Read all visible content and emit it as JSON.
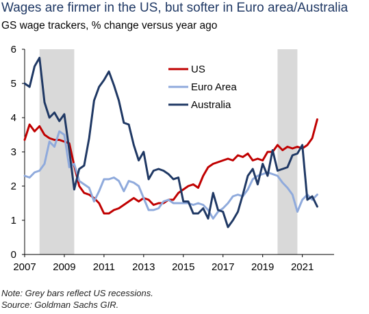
{
  "chart_data": {
    "type": "line",
    "title": "Wages are firmer in the US, but softer in Euro area/Australia",
    "subtitle": "GS wage trackers, % change versus year ago",
    "xlabel": "",
    "ylabel": "",
    "xlim": [
      2007,
      2022.6
    ],
    "ylim": [
      0,
      6
    ],
    "x_ticks": [
      2007,
      2009,
      2011,
      2013,
      2015,
      2017,
      2019,
      2021
    ],
    "y_ticks": [
      0,
      1,
      2,
      3,
      4,
      5,
      6
    ],
    "grid": false,
    "legend_position": "top-center",
    "shaded_periods": [
      {
        "start": 2007.75,
        "end": 2009.5
      },
      {
        "start": 2019.75,
        "end": 2020.75
      }
    ],
    "series": [
      {
        "name": "US",
        "color": "#c00000",
        "x": [
          2007.0,
          2007.25,
          2007.5,
          2007.75,
          2008.0,
          2008.25,
          2008.5,
          2008.75,
          2009.0,
          2009.25,
          2009.5,
          2009.75,
          2010.0,
          2010.25,
          2010.5,
          2010.75,
          2011.0,
          2011.25,
          2011.5,
          2011.75,
          2012.0,
          2012.25,
          2012.5,
          2012.75,
          2013.0,
          2013.25,
          2013.5,
          2013.75,
          2014.0,
          2014.25,
          2014.5,
          2014.75,
          2015.0,
          2015.25,
          2015.5,
          2015.75,
          2016.0,
          2016.25,
          2016.5,
          2016.75,
          2017.0,
          2017.25,
          2017.5,
          2017.75,
          2018.0,
          2018.25,
          2018.5,
          2018.75,
          2019.0,
          2019.25,
          2019.5,
          2019.75,
          2020.0,
          2020.25,
          2020.5,
          2020.75,
          2021.0,
          2021.25,
          2021.5,
          2021.75
        ],
        "y": [
          3.35,
          3.8,
          3.6,
          3.75,
          3.5,
          3.4,
          3.35,
          3.35,
          3.3,
          3.25,
          2.6,
          2.0,
          1.8,
          1.75,
          1.65,
          1.5,
          1.2,
          1.2,
          1.3,
          1.35,
          1.45,
          1.55,
          1.65,
          1.55,
          1.65,
          1.6,
          1.45,
          1.5,
          1.5,
          1.6,
          1.6,
          1.8,
          1.9,
          2.0,
          2.05,
          1.95,
          2.3,
          2.55,
          2.65,
          2.7,
          2.75,
          2.8,
          2.75,
          2.9,
          2.85,
          2.95,
          2.75,
          2.8,
          2.75,
          3.0,
          3.0,
          3.2,
          3.05,
          3.15,
          3.1,
          3.15,
          3.1,
          3.2,
          3.4,
          3.95
        ]
      },
      {
        "name": "Euro Area",
        "color": "#8faadc",
        "x": [
          2007.0,
          2007.25,
          2007.5,
          2007.75,
          2008.0,
          2008.25,
          2008.5,
          2008.75,
          2009.0,
          2009.25,
          2009.5,
          2009.75,
          2010.0,
          2010.25,
          2010.5,
          2010.75,
          2011.0,
          2011.25,
          2011.5,
          2011.75,
          2012.0,
          2012.25,
          2012.5,
          2012.75,
          2013.0,
          2013.25,
          2013.5,
          2013.75,
          2014.0,
          2014.25,
          2014.5,
          2014.75,
          2015.0,
          2015.25,
          2015.5,
          2015.75,
          2016.0,
          2016.25,
          2016.5,
          2016.75,
          2017.0,
          2017.25,
          2017.5,
          2017.75,
          2018.0,
          2018.25,
          2018.5,
          2018.75,
          2019.0,
          2019.25,
          2019.5,
          2019.75,
          2020.0,
          2020.25,
          2020.5,
          2020.75,
          2021.0,
          2021.25,
          2021.5,
          2021.75
        ],
        "y": [
          2.3,
          2.25,
          2.4,
          2.45,
          2.65,
          3.3,
          3.15,
          3.6,
          3.5,
          2.55,
          2.65,
          2.15,
          2.05,
          1.95,
          1.55,
          1.85,
          2.2,
          2.2,
          2.25,
          2.15,
          1.85,
          2.15,
          2.1,
          2.0,
          1.65,
          1.3,
          1.3,
          1.35,
          1.55,
          1.6,
          1.5,
          1.5,
          1.5,
          1.5,
          1.45,
          1.5,
          1.45,
          1.3,
          1.05,
          1.25,
          1.35,
          1.5,
          1.7,
          1.75,
          1.7,
          1.9,
          2.2,
          2.3,
          2.35,
          2.4,
          2.35,
          2.3,
          2.1,
          1.95,
          1.75,
          1.25,
          1.6,
          1.75,
          1.6,
          1.75
        ]
      },
      {
        "name": "Australia",
        "color": "#1f3864",
        "x": [
          2007.0,
          2007.25,
          2007.5,
          2007.75,
          2008.0,
          2008.25,
          2008.5,
          2008.75,
          2009.0,
          2009.25,
          2009.5,
          2009.75,
          2010.0,
          2010.25,
          2010.5,
          2010.75,
          2011.0,
          2011.25,
          2011.5,
          2011.75,
          2012.0,
          2012.25,
          2012.5,
          2012.75,
          2013.0,
          2013.25,
          2013.5,
          2013.75,
          2014.0,
          2014.25,
          2014.5,
          2014.75,
          2015.0,
          2015.25,
          2015.5,
          2015.75,
          2016.0,
          2016.25,
          2016.5,
          2016.75,
          2017.0,
          2017.25,
          2017.5,
          2017.75,
          2018.0,
          2018.25,
          2018.5,
          2018.75,
          2019.0,
          2019.25,
          2019.5,
          2019.75,
          2020.0,
          2020.25,
          2020.5,
          2020.75,
          2021.0,
          2021.25,
          2021.5,
          2021.75
        ],
        "y": [
          5.0,
          4.9,
          5.5,
          5.75,
          4.45,
          4.0,
          4.15,
          3.9,
          4.1,
          3.05,
          1.9,
          2.5,
          2.6,
          3.4,
          4.5,
          4.9,
          5.1,
          5.35,
          4.95,
          4.5,
          3.85,
          3.8,
          3.2,
          2.75,
          3.0,
          2.2,
          2.45,
          2.5,
          2.45,
          2.35,
          2.2,
          2.25,
          1.55,
          1.55,
          1.2,
          1.2,
          1.35,
          1.05,
          1.8,
          1.3,
          1.25,
          0.8,
          1.0,
          1.25,
          1.75,
          2.3,
          2.5,
          2.05,
          2.65,
          2.3,
          3.05,
          2.45,
          2.5,
          2.55,
          2.9,
          2.95,
          3.2,
          1.6,
          1.7,
          1.4
        ]
      }
    ],
    "notes": [
      "Note: Grey bars reflect US recessions.",
      "Source: Goldman Sachs GIR."
    ]
  }
}
